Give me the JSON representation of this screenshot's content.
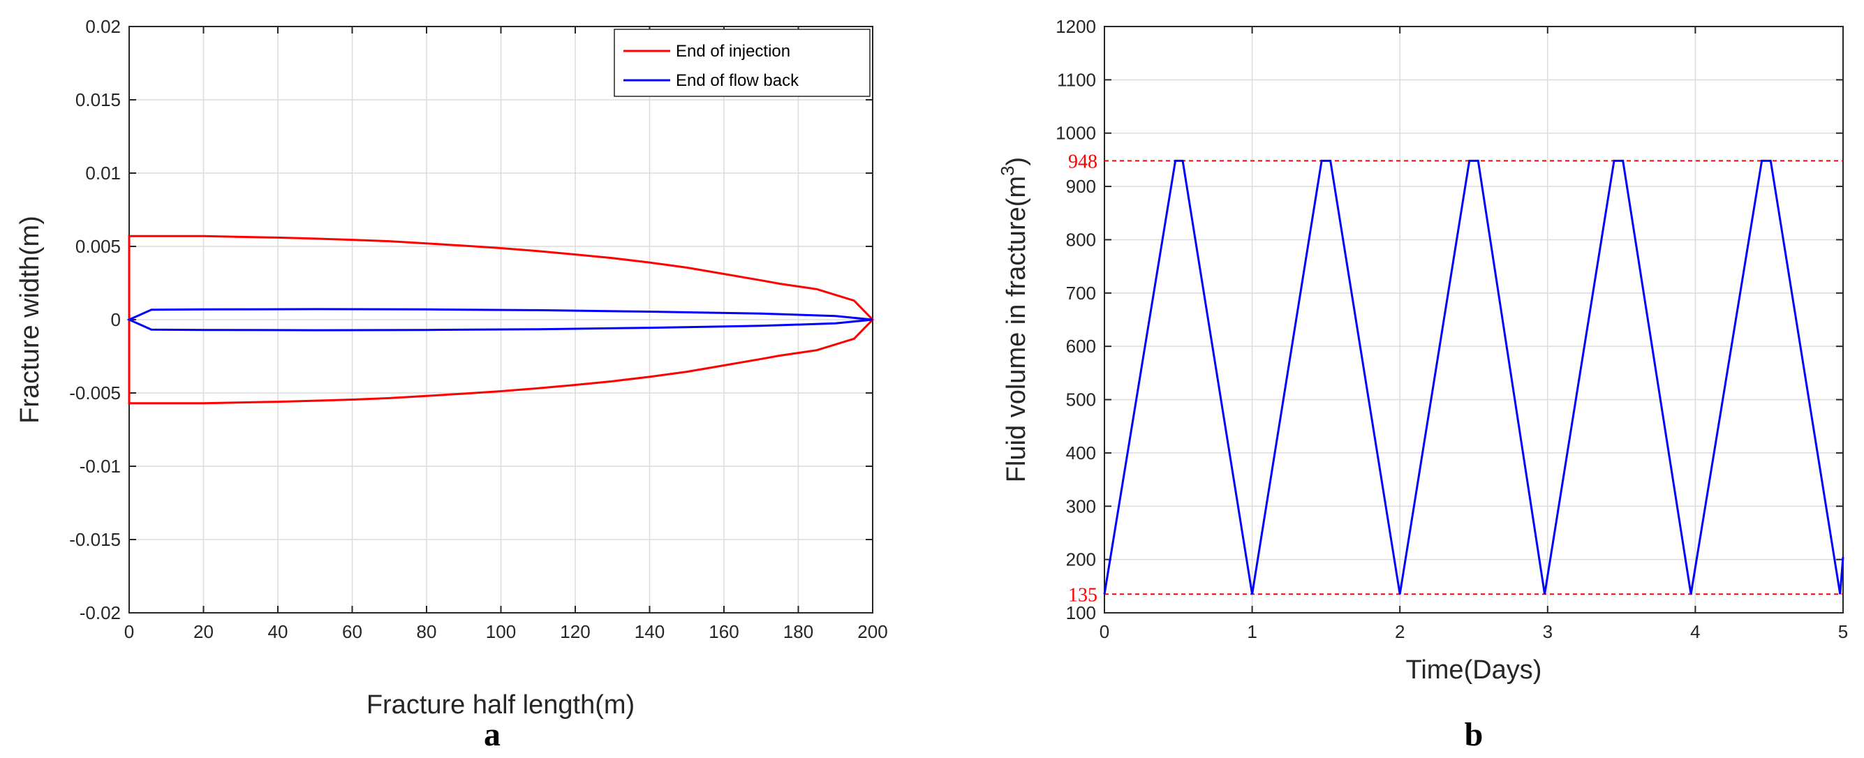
{
  "colors": {
    "injection": "#ff0000",
    "flowback": "#0000ff",
    "volume": "#0000ff",
    "reference": "#ff0000",
    "grid": "#dcdcdc",
    "axis": "#262626"
  },
  "chart_data": [
    {
      "type": "line",
      "panel_label": "a",
      "xlabel": "Fracture half length(m)",
      "ylabel": "Fracture width(m)",
      "xlim": [
        0,
        200
      ],
      "ylim": [
        -0.02,
        0.02
      ],
      "xticks": [
        0,
        20,
        40,
        60,
        80,
        100,
        120,
        140,
        160,
        180,
        200
      ],
      "xtick_labels": [
        "0",
        "20",
        "40",
        "60",
        "80",
        "100",
        "120",
        "140",
        "160",
        "180",
        "200"
      ],
      "yticks": [
        -0.02,
        -0.015,
        -0.01,
        -0.005,
        0,
        0.005,
        0.01,
        0.015,
        0.02
      ],
      "ytick_labels": [
        "-0.02",
        "-0.015",
        "-0.01",
        "-0.005",
        "0",
        "0.005",
        "0.01",
        "0.015",
        "0.02"
      ],
      "grid": true,
      "legend_position": "top-right",
      "series": [
        {
          "name": "End of injection",
          "color_key": "injection",
          "closed": true,
          "x": [
            0,
            10,
            20,
            30,
            40,
            50,
            60,
            70,
            80,
            90,
            100,
            110,
            120,
            130,
            140,
            150,
            160,
            170,
            175,
            185,
            195,
            200,
            195,
            185,
            175,
            170,
            160,
            150,
            140,
            130,
            120,
            110,
            100,
            90,
            80,
            70,
            60,
            50,
            40,
            30,
            20,
            10,
            0
          ],
          "y": [
            0.0057,
            0.0057,
            0.0057,
            0.00565,
            0.0056,
            0.00553,
            0.00545,
            0.00535,
            0.0052,
            0.00505,
            0.00488,
            0.00468,
            0.00445,
            0.0042,
            0.0039,
            0.00355,
            0.00312,
            0.00268,
            0.00245,
            0.00208,
            0.0013,
            0.0,
            -0.0013,
            -0.00208,
            -0.00245,
            -0.00268,
            -0.00312,
            -0.00355,
            -0.0039,
            -0.0042,
            -0.00445,
            -0.00468,
            -0.00488,
            -0.00505,
            -0.0052,
            -0.00535,
            -0.00545,
            -0.00553,
            -0.0056,
            -0.00565,
            -0.0057,
            -0.0057,
            -0.0057
          ]
        },
        {
          "name": "End of flow back",
          "color_key": "flowback",
          "closed": true,
          "x": [
            0,
            6,
            20,
            50,
            80,
            110,
            140,
            170,
            190,
            200,
            190,
            170,
            140,
            110,
            80,
            50,
            20,
            6,
            0
          ],
          "y": [
            0.0,
            0.00068,
            0.0007,
            0.00072,
            0.0007,
            0.00065,
            0.00055,
            0.00042,
            0.00025,
            0.0,
            -0.00025,
            -0.00042,
            -0.00055,
            -0.00065,
            -0.0007,
            -0.00072,
            -0.0007,
            -0.00068,
            0.0
          ]
        }
      ]
    },
    {
      "type": "line",
      "panel_label": "b",
      "xlabel": "Time(Days)",
      "ylabel": "Fluid volume in fracture(m",
      "ylabel_superscript": "3",
      "ylabel_close": ")",
      "xlim": [
        0,
        5
      ],
      "ylim": [
        100,
        1200
      ],
      "xticks": [
        0,
        1,
        2,
        3,
        4,
        5
      ],
      "xtick_labels": [
        "0",
        "1",
        "2",
        "3",
        "4",
        "5"
      ],
      "yticks": [
        100,
        200,
        300,
        400,
        500,
        600,
        700,
        800,
        900,
        1000,
        1100,
        1200
      ],
      "ytick_labels": [
        "100",
        "200",
        "300",
        "400",
        "500",
        "600",
        "700",
        "800",
        "900",
        "1000",
        "1100",
        "1200"
      ],
      "grid": true,
      "reference_lines": [
        {
          "value": 948,
          "label": "948"
        },
        {
          "value": 135,
          "label": "135"
        }
      ],
      "series": [
        {
          "color_key": "volume",
          "x": [
            0,
            0.48,
            0.53,
            1.0,
            1.47,
            1.53,
            2.0,
            2.47,
            2.53,
            2.98,
            3.45,
            3.51,
            3.97,
            4.45,
            4.51,
            4.98,
            5.0
          ],
          "y": [
            135,
            948,
            948,
            135,
            948,
            948,
            135,
            948,
            948,
            135,
            948,
            948,
            135,
            948,
            948,
            135,
            205
          ]
        }
      ]
    }
  ]
}
